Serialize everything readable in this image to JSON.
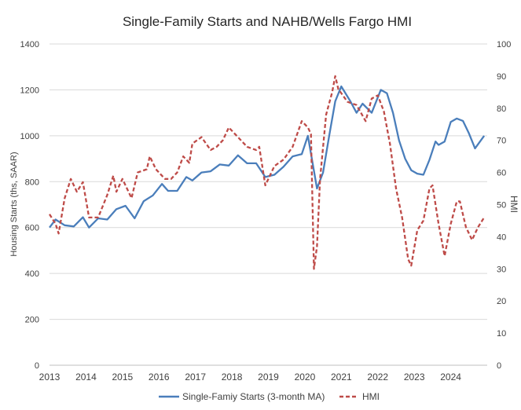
{
  "chart_data": {
    "type": "line",
    "title": "Single-Family Starts and NAHB/Wells Fargo HMI",
    "ylabel": "Housing Starts (ths, SAAR)",
    "y2label": "HMI",
    "xlabel": "",
    "xlim": [
      2013,
      2025
    ],
    "ylim": [
      0,
      1400
    ],
    "y2lim": [
      0,
      100
    ],
    "x_ticks": [
      "2013",
      "2014",
      "2015",
      "2016",
      "2017",
      "2018",
      "2019",
      "2020",
      "2021",
      "2022",
      "2023",
      "2024"
    ],
    "y_ticks": [
      "0",
      "200",
      "400",
      "600",
      "800",
      "1000",
      "1200",
      "1400"
    ],
    "y2_ticks": [
      "0",
      "10",
      "20",
      "30",
      "40",
      "50",
      "60",
      "70",
      "80",
      "90",
      "100"
    ],
    "grid": "horizontal",
    "legend": "bottom",
    "series": [
      {
        "name": "Single-Famiy Starts (3-month MA)",
        "axis": "left",
        "color": "#4a7ebb",
        "style": "solid",
        "points": [
          [
            "2013-01",
            600
          ],
          [
            "2013-03",
            635
          ],
          [
            "2013-06",
            610
          ],
          [
            "2013-09",
            605
          ],
          [
            "2013-12",
            645
          ],
          [
            "2014-02",
            600
          ],
          [
            "2014-05",
            640
          ],
          [
            "2014-08",
            635
          ],
          [
            "2014-11",
            680
          ],
          [
            "2015-02",
            695
          ],
          [
            "2015-05",
            640
          ],
          [
            "2015-08",
            715
          ],
          [
            "2015-11",
            740
          ],
          [
            "2016-02",
            790
          ],
          [
            "2016-04",
            760
          ],
          [
            "2016-07",
            760
          ],
          [
            "2016-10",
            820
          ],
          [
            "2016-12",
            805
          ],
          [
            "2017-03",
            840
          ],
          [
            "2017-06",
            845
          ],
          [
            "2017-09",
            875
          ],
          [
            "2017-12",
            870
          ],
          [
            "2018-03",
            915
          ],
          [
            "2018-06",
            880
          ],
          [
            "2018-09",
            880
          ],
          [
            "2018-12",
            820
          ],
          [
            "2019-03",
            830
          ],
          [
            "2019-06",
            865
          ],
          [
            "2019-09",
            910
          ],
          [
            "2019-12",
            920
          ],
          [
            "2020-02",
            1000
          ],
          [
            "2020-05",
            770
          ],
          [
            "2020-07",
            840
          ],
          [
            "2020-09",
            1000
          ],
          [
            "2020-11",
            1150
          ],
          [
            "2021-01",
            1215
          ],
          [
            "2021-04",
            1150
          ],
          [
            "2021-06",
            1100
          ],
          [
            "2021-08",
            1140
          ],
          [
            "2021-11",
            1100
          ],
          [
            "2022-02",
            1200
          ],
          [
            "2022-04",
            1185
          ],
          [
            "2022-06",
            1100
          ],
          [
            "2022-08",
            980
          ],
          [
            "2022-10",
            900
          ],
          [
            "2022-12",
            850
          ],
          [
            "2023-02",
            835
          ],
          [
            "2023-04",
            830
          ],
          [
            "2023-06",
            895
          ],
          [
            "2023-08",
            975
          ],
          [
            "2023-09",
            960
          ],
          [
            "2023-11",
            975
          ],
          [
            "2024-01",
            1060
          ],
          [
            "2024-03",
            1075
          ],
          [
            "2024-05",
            1065
          ],
          [
            "2024-07",
            1010
          ],
          [
            "2024-09",
            945
          ],
          [
            "2024-12",
            1000
          ]
        ]
      },
      {
        "name": "HMI",
        "axis": "right",
        "color": "#be4b48",
        "style": "dashed",
        "points": [
          [
            "2013-01",
            47
          ],
          [
            "2013-03",
            44
          ],
          [
            "2013-04",
            41
          ],
          [
            "2013-06",
            52
          ],
          [
            "2013-08",
            58
          ],
          [
            "2013-10",
            54
          ],
          [
            "2013-12",
            57
          ],
          [
            "2014-02",
            46
          ],
          [
            "2014-05",
            46
          ],
          [
            "2014-08",
            53
          ],
          [
            "2014-10",
            59
          ],
          [
            "2014-11",
            54
          ],
          [
            "2015-01",
            58
          ],
          [
            "2015-04",
            52
          ],
          [
            "2015-06",
            60
          ],
          [
            "2015-09",
            61
          ],
          [
            "2015-10",
            65
          ],
          [
            "2015-12",
            61
          ],
          [
            "2016-03",
            58
          ],
          [
            "2016-05",
            58
          ],
          [
            "2016-07",
            60
          ],
          [
            "2016-09",
            65
          ],
          [
            "2016-11",
            63
          ],
          [
            "2016-12",
            69
          ],
          [
            "2017-03",
            71
          ],
          [
            "2017-06",
            67
          ],
          [
            "2017-08",
            68
          ],
          [
            "2017-10",
            70
          ],
          [
            "2017-12",
            74
          ],
          [
            "2018-03",
            71
          ],
          [
            "2018-06",
            68
          ],
          [
            "2018-09",
            67
          ],
          [
            "2018-10",
            68
          ],
          [
            "2018-12",
            56
          ],
          [
            "2019-03",
            62
          ],
          [
            "2019-06",
            64
          ],
          [
            "2019-09",
            68
          ],
          [
            "2019-12",
            76
          ],
          [
            "2020-02",
            74
          ],
          [
            "2020-03",
            72
          ],
          [
            "2020-04",
            30
          ],
          [
            "2020-05",
            37
          ],
          [
            "2020-06",
            58
          ],
          [
            "2020-08",
            78
          ],
          [
            "2020-10",
            85
          ],
          [
            "2020-11",
            90
          ],
          [
            "2020-12",
            86
          ],
          [
            "2021-03",
            82
          ],
          [
            "2021-06",
            81
          ],
          [
            "2021-09",
            76
          ],
          [
            "2021-11",
            83
          ],
          [
            "2022-01",
            84
          ],
          [
            "2022-03",
            79
          ],
          [
            "2022-05",
            69
          ],
          [
            "2022-07",
            55
          ],
          [
            "2022-09",
            46
          ],
          [
            "2022-11",
            33
          ],
          [
            "2022-12",
            31
          ],
          [
            "2023-02",
            42
          ],
          [
            "2023-04",
            45
          ],
          [
            "2023-06",
            55
          ],
          [
            "2023-07",
            56
          ],
          [
            "2023-09",
            44
          ],
          [
            "2023-11",
            34
          ],
          [
            "2024-01",
            44
          ],
          [
            "2024-03",
            51
          ],
          [
            "2024-04",
            51
          ],
          [
            "2024-06",
            43
          ],
          [
            "2024-08",
            39
          ],
          [
            "2024-10",
            43
          ],
          [
            "2024-12",
            46
          ]
        ]
      }
    ]
  }
}
